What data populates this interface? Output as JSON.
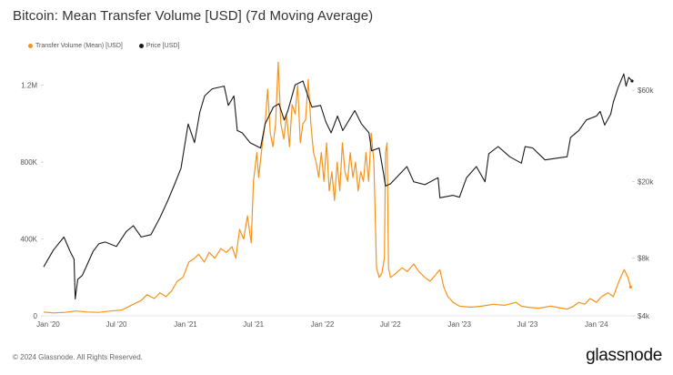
{
  "page": {
    "title": "Bitcoin: Mean Transfer Volume [USD] (7d Moving Average)",
    "footer": "© 2024 Glassnode. All Rights Reserved.",
    "brand": "glassnode"
  },
  "chart_data": {
    "type": "line",
    "title": "Bitcoin: Mean Transfer Volume [USD] (7d Moving Average)",
    "x_range": [
      "2019-12-20",
      "2024-04-05"
    ],
    "x_ticks": [
      {
        "label": "Jan '20",
        "date": "2020-01-01"
      },
      {
        "label": "Jul '20",
        "date": "2020-07-01"
      },
      {
        "label": "Jan '21",
        "date": "2021-01-01"
      },
      {
        "label": "Jul '21",
        "date": "2021-07-01"
      },
      {
        "label": "Jan '22",
        "date": "2022-01-01"
      },
      {
        "label": "Jul '22",
        "date": "2022-07-01"
      },
      {
        "label": "Jan '23",
        "date": "2023-01-01"
      },
      {
        "label": "Jul '23",
        "date": "2023-07-01"
      },
      {
        "label": "Jan '24",
        "date": "2024-01-01"
      }
    ],
    "y_left": {
      "scale": "linear",
      "range": [
        0,
        1350000
      ],
      "ticks": [
        {
          "label": "0",
          "value": 0
        },
        {
          "label": "400K",
          "value": 400000
        },
        {
          "label": "800K",
          "value": 800000
        },
        {
          "label": "1.2M",
          "value": 1200000
        }
      ]
    },
    "y_right": {
      "scale": "log",
      "range": [
        4000,
        90000
      ],
      "ticks": [
        {
          "label": "$4k",
          "value": 4000
        },
        {
          "label": "$8k",
          "value": 8000
        },
        {
          "label": "$20k",
          "value": 20000
        },
        {
          "label": "$60k",
          "value": 60000
        }
      ]
    },
    "grid": false,
    "legend_position": "top-left",
    "series": [
      {
        "name": "Transfer Volume (Mean) [USD]",
        "axis": "left",
        "color": "#f7931a",
        "points": [
          [
            "2019-12-20",
            20000
          ],
          [
            "2020-01-15",
            15000
          ],
          [
            "2020-02-15",
            18000
          ],
          [
            "2020-03-15",
            25000
          ],
          [
            "2020-04-15",
            20000
          ],
          [
            "2020-05-15",
            18000
          ],
          [
            "2020-06-15",
            25000
          ],
          [
            "2020-07-15",
            30000
          ],
          [
            "2020-08-15",
            60000
          ],
          [
            "2020-09-05",
            80000
          ],
          [
            "2020-09-20",
            110000
          ],
          [
            "2020-10-10",
            90000
          ],
          [
            "2020-10-25",
            120000
          ],
          [
            "2020-11-10",
            100000
          ],
          [
            "2020-11-25",
            130000
          ],
          [
            "2020-12-10",
            180000
          ],
          [
            "2020-12-25",
            200000
          ],
          [
            "2021-01-10",
            280000
          ],
          [
            "2021-01-25",
            300000
          ],
          [
            "2021-02-05",
            320000
          ],
          [
            "2021-02-20",
            280000
          ],
          [
            "2021-03-05",
            330000
          ],
          [
            "2021-03-20",
            300000
          ],
          [
            "2021-04-05",
            350000
          ],
          [
            "2021-04-20",
            330000
          ],
          [
            "2021-05-05",
            360000
          ],
          [
            "2021-05-15",
            300000
          ],
          [
            "2021-05-25",
            450000
          ],
          [
            "2021-06-05",
            400000
          ],
          [
            "2021-06-15",
            520000
          ],
          [
            "2021-06-25",
            380000
          ],
          [
            "2021-07-01",
            700000
          ],
          [
            "2021-07-10",
            850000
          ],
          [
            "2021-07-15",
            720000
          ],
          [
            "2021-07-25",
            900000
          ],
          [
            "2021-08-01",
            1000000
          ],
          [
            "2021-08-08",
            1180000
          ],
          [
            "2021-08-15",
            950000
          ],
          [
            "2021-08-22",
            880000
          ],
          [
            "2021-08-29",
            1000000
          ],
          [
            "2021-09-05",
            1320000
          ],
          [
            "2021-09-12",
            1000000
          ],
          [
            "2021-09-20",
            920000
          ],
          [
            "2021-09-27",
            1050000
          ],
          [
            "2021-10-05",
            880000
          ],
          [
            "2021-10-12",
            1100000
          ],
          [
            "2021-10-20",
            1050000
          ],
          [
            "2021-10-27",
            1200000
          ],
          [
            "2021-11-03",
            900000
          ],
          [
            "2021-11-10",
            1000000
          ],
          [
            "2021-11-17",
            1020000
          ],
          [
            "2021-11-24",
            1230000
          ],
          [
            "2021-12-01",
            1000000
          ],
          [
            "2021-12-08",
            850000
          ],
          [
            "2021-12-15",
            800000
          ],
          [
            "2021-12-22",
            720000
          ],
          [
            "2021-12-29",
            850000
          ],
          [
            "2022-01-05",
            700000
          ],
          [
            "2022-01-12",
            900000
          ],
          [
            "2022-01-19",
            650000
          ],
          [
            "2022-01-26",
            750000
          ],
          [
            "2022-02-02",
            600000
          ],
          [
            "2022-02-09",
            800000
          ],
          [
            "2022-02-16",
            650000
          ],
          [
            "2022-02-23",
            900000
          ],
          [
            "2022-03-02",
            750000
          ],
          [
            "2022-03-09",
            700000
          ],
          [
            "2022-03-16",
            850000
          ],
          [
            "2022-03-23",
            720000
          ],
          [
            "2022-03-30",
            800000
          ],
          [
            "2022-04-06",
            650000
          ],
          [
            "2022-04-13",
            750000
          ],
          [
            "2022-04-20",
            700000
          ],
          [
            "2022-04-27",
            850000
          ],
          [
            "2022-05-04",
            700000
          ],
          [
            "2022-05-11",
            950000
          ],
          [
            "2022-05-18",
            800000
          ],
          [
            "2022-05-25",
            250000
          ],
          [
            "2022-06-01",
            200000
          ],
          [
            "2022-06-08",
            220000
          ],
          [
            "2022-06-15",
            300000
          ],
          [
            "2022-06-18",
            850000
          ],
          [
            "2022-06-22",
            900000
          ],
          [
            "2022-06-26",
            250000
          ],
          [
            "2022-07-01",
            200000
          ],
          [
            "2022-07-15",
            220000
          ],
          [
            "2022-08-01",
            250000
          ],
          [
            "2022-08-15",
            230000
          ],
          [
            "2022-09-01",
            270000
          ],
          [
            "2022-09-15",
            230000
          ],
          [
            "2022-10-01",
            200000
          ],
          [
            "2022-10-15",
            180000
          ],
          [
            "2022-11-01",
            220000
          ],
          [
            "2022-11-10",
            240000
          ],
          [
            "2022-11-20",
            150000
          ],
          [
            "2022-12-01",
            100000
          ],
          [
            "2022-12-15",
            70000
          ],
          [
            "2023-01-01",
            50000
          ],
          [
            "2023-02-01",
            45000
          ],
          [
            "2023-03-01",
            50000
          ],
          [
            "2023-04-01",
            60000
          ],
          [
            "2023-05-01",
            55000
          ],
          [
            "2023-06-01",
            70000
          ],
          [
            "2023-06-15",
            50000
          ],
          [
            "2023-07-01",
            45000
          ],
          [
            "2023-08-01",
            40000
          ],
          [
            "2023-09-01",
            50000
          ],
          [
            "2023-10-01",
            40000
          ],
          [
            "2023-10-15",
            35000
          ],
          [
            "2023-11-01",
            50000
          ],
          [
            "2023-11-15",
            70000
          ],
          [
            "2023-12-01",
            60000
          ],
          [
            "2023-12-15",
            90000
          ],
          [
            "2024-01-01",
            70000
          ],
          [
            "2024-01-15",
            100000
          ],
          [
            "2024-02-01",
            120000
          ],
          [
            "2024-02-15",
            100000
          ],
          [
            "2024-03-01",
            180000
          ],
          [
            "2024-03-15",
            240000
          ],
          [
            "2024-03-25",
            200000
          ],
          [
            "2024-04-01",
            150000
          ]
        ]
      },
      {
        "name": "Price [USD]",
        "axis": "right",
        "color": "#1a1a1a",
        "points": [
          [
            "2019-12-20",
            7200
          ],
          [
            "2020-01-15",
            8800
          ],
          [
            "2020-02-12",
            10300
          ],
          [
            "2020-02-28",
            8700
          ],
          [
            "2020-03-10",
            7900
          ],
          [
            "2020-03-13",
            4900
          ],
          [
            "2020-03-20",
            6200
          ],
          [
            "2020-04-01",
            6500
          ],
          [
            "2020-04-30",
            8700
          ],
          [
            "2020-05-15",
            9500
          ],
          [
            "2020-06-01",
            9700
          ],
          [
            "2020-07-01",
            9200
          ],
          [
            "2020-07-27",
            11000
          ],
          [
            "2020-08-15",
            11800
          ],
          [
            "2020-09-05",
            10300
          ],
          [
            "2020-10-01",
            10600
          ],
          [
            "2020-10-25",
            13000
          ],
          [
            "2020-11-15",
            16000
          ],
          [
            "2020-12-01",
            19000
          ],
          [
            "2020-12-20",
            23500
          ],
          [
            "2021-01-08",
            40000
          ],
          [
            "2021-01-25",
            32000
          ],
          [
            "2021-02-08",
            46000
          ],
          [
            "2021-02-21",
            56000
          ],
          [
            "2021-03-13",
            61000
          ],
          [
            "2021-04-14",
            63000
          ],
          [
            "2021-04-25",
            50000
          ],
          [
            "2021-05-10",
            56000
          ],
          [
            "2021-05-19",
            37000
          ],
          [
            "2021-06-01",
            36000
          ],
          [
            "2021-06-22",
            32000
          ],
          [
            "2021-07-20",
            30000
          ],
          [
            "2021-08-01",
            40000
          ],
          [
            "2021-08-23",
            49000
          ],
          [
            "2021-09-07",
            51000
          ],
          [
            "2021-09-21",
            42000
          ],
          [
            "2021-10-01",
            47000
          ],
          [
            "2021-10-20",
            64000
          ],
          [
            "2021-11-10",
            67000
          ],
          [
            "2021-11-26",
            54000
          ],
          [
            "2021-12-04",
            49000
          ],
          [
            "2021-12-27",
            50000
          ],
          [
            "2022-01-10",
            41000
          ],
          [
            "2022-01-24",
            36000
          ],
          [
            "2022-02-10",
            44000
          ],
          [
            "2022-02-24",
            37000
          ],
          [
            "2022-03-28",
            47000
          ],
          [
            "2022-04-15",
            40000
          ],
          [
            "2022-05-05",
            36000
          ],
          [
            "2022-05-12",
            29000
          ],
          [
            "2022-06-01",
            30000
          ],
          [
            "2022-06-13",
            22000
          ],
          [
            "2022-06-18",
            19000
          ],
          [
            "2022-07-01",
            19500
          ],
          [
            "2022-08-14",
            24000
          ],
          [
            "2022-09-01",
            20000
          ],
          [
            "2022-10-01",
            19300
          ],
          [
            "2022-11-05",
            21000
          ],
          [
            "2022-11-10",
            16500
          ],
          [
            "2022-12-15",
            17000
          ],
          [
            "2023-01-01",
            16600
          ],
          [
            "2023-01-20",
            21000
          ],
          [
            "2023-02-15",
            24000
          ],
          [
            "2023-03-10",
            20000
          ],
          [
            "2023-03-20",
            28000
          ],
          [
            "2023-04-14",
            30500
          ],
          [
            "2023-05-15",
            27000
          ],
          [
            "2023-06-15",
            25000
          ],
          [
            "2023-06-25",
            30500
          ],
          [
            "2023-07-15",
            30000
          ],
          [
            "2023-08-17",
            26000
          ],
          [
            "2023-09-15",
            26500
          ],
          [
            "2023-10-15",
            27000
          ],
          [
            "2023-10-24",
            34000
          ],
          [
            "2023-11-15",
            37000
          ],
          [
            "2023-12-05",
            42000
          ],
          [
            "2024-01-01",
            44000
          ],
          [
            "2024-01-11",
            46500
          ],
          [
            "2024-01-23",
            39500
          ],
          [
            "2024-02-08",
            45000
          ],
          [
            "2024-02-15",
            52000
          ],
          [
            "2024-02-28",
            62000
          ],
          [
            "2024-03-14",
            73000
          ],
          [
            "2024-03-20",
            63000
          ],
          [
            "2024-03-27",
            70000
          ],
          [
            "2024-04-05",
            67000
          ]
        ]
      }
    ]
  }
}
